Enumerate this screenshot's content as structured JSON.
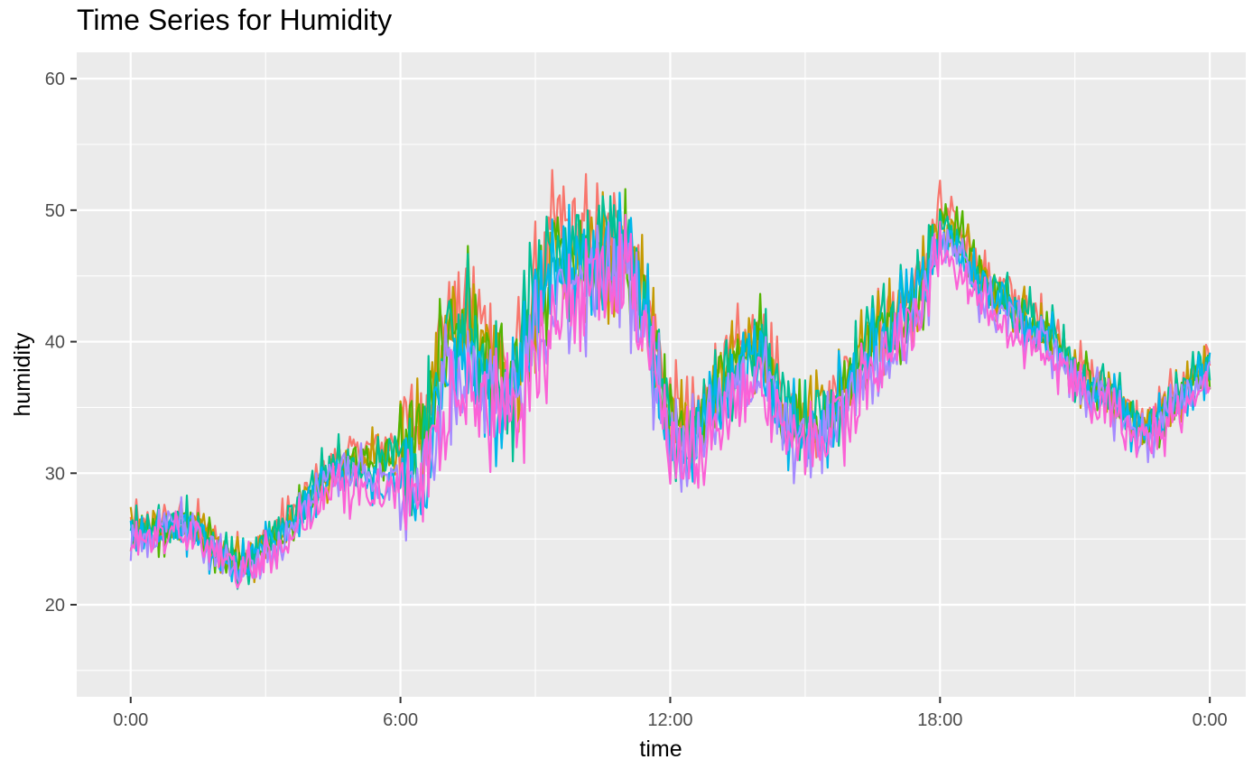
{
  "chart_data": {
    "type": "line",
    "title": "Time Series for Humidity",
    "xlabel": "time",
    "ylabel": "humidity",
    "x_unit": "hours of day",
    "xlim": [
      -1.2,
      24.8
    ],
    "ylim": [
      13,
      62
    ],
    "x_ticks": [
      {
        "value": 0,
        "label": "0:00"
      },
      {
        "value": 6,
        "label": "6:00"
      },
      {
        "value": 12,
        "label": "12:00"
      },
      {
        "value": 18,
        "label": "18:00"
      },
      {
        "value": 24,
        "label": "0:00"
      }
    ],
    "y_ticks": [
      {
        "value": 20,
        "label": "20"
      },
      {
        "value": 30,
        "label": "30"
      },
      {
        "value": 40,
        "label": "40"
      },
      {
        "value": 50,
        "label": "50"
      },
      {
        "value": 60,
        "label": "60"
      }
    ],
    "grid": true,
    "legend": "none",
    "x": [
      0,
      0.5,
      1,
      1.5,
      2,
      2.5,
      3,
      3.5,
      4,
      4.5,
      5,
      5.5,
      6,
      6.5,
      7,
      7.5,
      8,
      8.5,
      9,
      9.5,
      10,
      10.5,
      11,
      11.5,
      12,
      12.5,
      13,
      13.5,
      14,
      14.5,
      15,
      15.5,
      16,
      16.5,
      17,
      17.5,
      18,
      18.5,
      19,
      19.5,
      20,
      20.5,
      21,
      21.5,
      22,
      22.5,
      23,
      23.5,
      24
    ],
    "series": [
      {
        "color": "#F8766D",
        "values": [
          26,
          25.5,
          26.5,
          26,
          24,
          23.5,
          25,
          26.5,
          28.5,
          31,
          31.5,
          32,
          33,
          34,
          42,
          43,
          40,
          37,
          44,
          49,
          48,
          47.5,
          48,
          43,
          35,
          33.5,
          37,
          39,
          41,
          35,
          34,
          35,
          38,
          40,
          42,
          44,
          50,
          48,
          45,
          44,
          42,
          41,
          38,
          37,
          35.5,
          33.5,
          35,
          37,
          39
        ]
      },
      {
        "color": "#C49A00",
        "values": [
          25.5,
          25.8,
          26,
          26.2,
          24,
          23.2,
          24.5,
          26,
          28,
          30.5,
          31,
          31.5,
          32,
          33,
          41.5,
          42,
          39,
          36.5,
          43,
          47.5,
          46,
          46,
          47,
          42,
          34,
          33,
          36.5,
          38,
          40,
          34.5,
          33.5,
          34.5,
          37.5,
          39.5,
          41.5,
          43.5,
          49,
          47.5,
          44.5,
          43,
          41.5,
          40,
          37.5,
          36.5,
          35,
          33,
          34.5,
          36.5,
          38
        ]
      },
      {
        "color": "#53B400",
        "values": [
          25.2,
          25.6,
          25.8,
          26,
          23.8,
          23,
          24.4,
          26,
          28,
          30.2,
          30.8,
          31.4,
          32,
          32.8,
          41,
          42,
          39,
          36.5,
          42.5,
          47,
          46,
          46,
          46.5,
          41.8,
          34,
          33,
          36.5,
          38,
          40,
          34.5,
          33.5,
          34.5,
          37.5,
          39.5,
          41.5,
          43.5,
          49,
          47.5,
          44.5,
          43,
          41.5,
          40,
          37.5,
          36.5,
          35,
          33,
          34.5,
          36.5,
          38
        ]
      },
      {
        "color": "#00C094",
        "values": [
          25.5,
          26,
          26.5,
          25.8,
          24,
          23,
          25,
          26.3,
          29,
          31,
          31,
          31,
          31.5,
          32,
          40,
          42,
          38,
          36,
          45,
          46,
          47,
          48,
          49,
          42,
          33,
          33,
          36,
          38,
          40,
          35,
          34,
          35,
          37,
          40,
          42,
          44,
          49,
          47,
          44.5,
          43.5,
          42,
          40.5,
          37.5,
          37,
          35.5,
          33.5,
          35,
          37,
          38.5
        ]
      },
      {
        "color": "#00B6EB",
        "values": [
          25,
          25.5,
          26,
          25.5,
          23.5,
          23,
          24.5,
          26,
          28,
          30,
          30,
          29.5,
          29,
          28,
          38,
          38,
          36,
          35,
          42,
          45,
          46,
          46,
          47,
          41,
          33,
          32,
          35,
          37,
          39,
          34,
          33,
          34,
          37,
          39,
          41,
          43,
          48,
          46,
          44,
          43,
          41,
          40,
          37,
          36,
          35,
          33,
          34,
          36,
          37.5
        ]
      },
      {
        "color": "#A58AFF",
        "values": [
          25,
          25.3,
          26.5,
          25.5,
          23.5,
          22.5,
          24,
          25.5,
          28,
          30,
          30.5,
          30,
          30,
          29.5,
          37,
          38,
          37,
          35,
          40,
          43,
          44,
          44,
          46,
          40,
          33,
          32,
          35,
          36,
          38,
          34,
          32,
          33,
          36,
          38,
          40,
          42,
          48,
          46,
          43,
          42,
          40.5,
          39.5,
          37,
          36,
          34.5,
          32.5,
          34,
          36,
          37.5
        ]
      },
      {
        "color": "#FB61D7",
        "values": [
          24.5,
          25,
          25.5,
          25.5,
          23.5,
          22.5,
          23.5,
          25,
          27,
          29,
          28.5,
          28.5,
          29,
          29.5,
          35,
          36,
          35,
          34,
          38,
          42,
          43,
          44,
          45,
          39,
          32,
          31,
          34,
          35,
          37,
          33,
          32,
          33,
          35,
          37.5,
          39.5,
          41.5,
          47,
          45.5,
          42.5,
          41,
          40,
          39,
          36.5,
          35.5,
          34,
          32,
          33.5,
          35.5,
          37
        ]
      }
    ]
  }
}
